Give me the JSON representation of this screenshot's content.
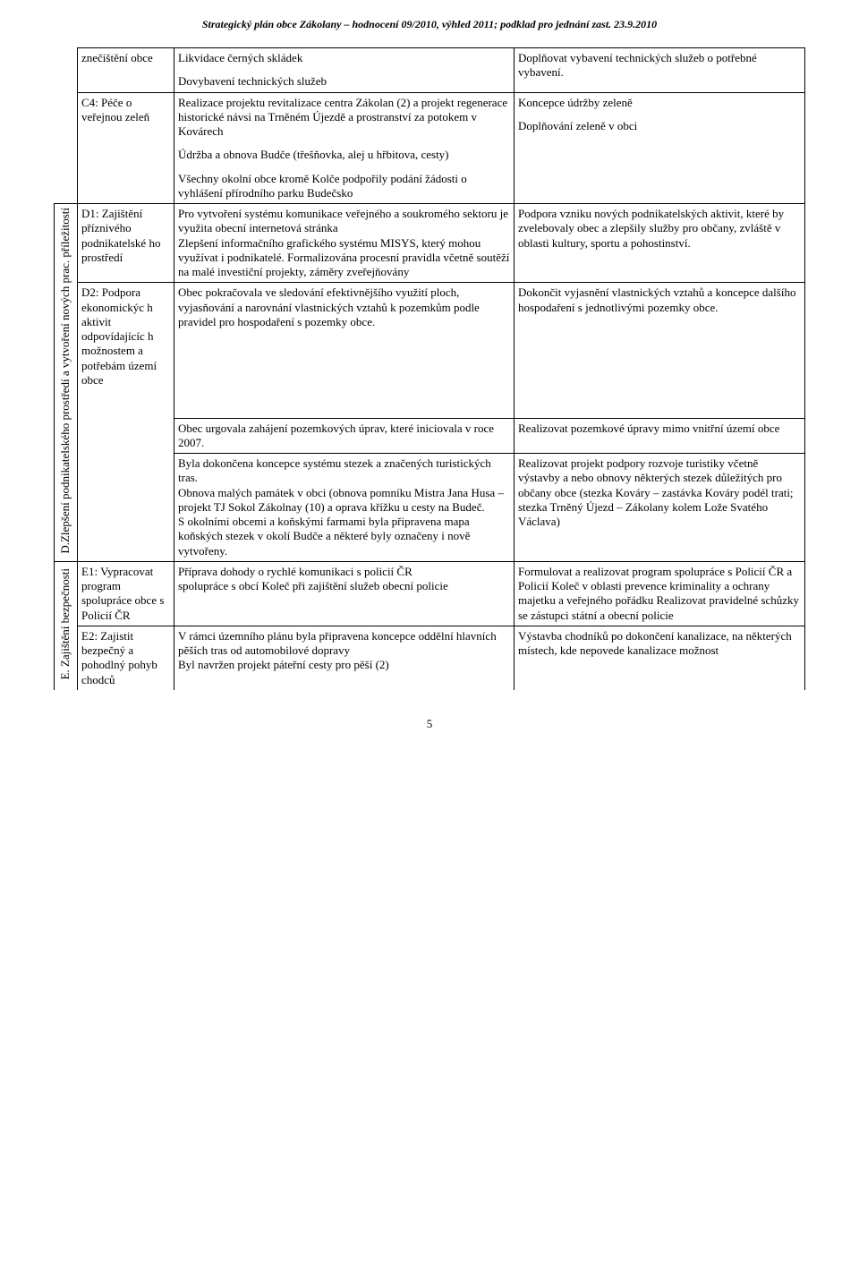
{
  "header": "Strategický plán obce Zákolany – hodnocení 09/2010, výhled 2011; podklad pro jednání zast. 23.9.2010",
  "page_number": "5",
  "sections": {
    "D": {
      "vlabel": "D.Zlepšení podnikatelského prostředí\na vytvoření nových prac. příležitostí"
    },
    "E": {
      "vlabel": "E.   Zajištění bezpečnosti"
    }
  },
  "rows": {
    "znecisteni": {
      "cat": "znečištění obce",
      "mid_p1": "Likvidace černých skládek",
      "mid_p2": "Dovybavení technických služeb",
      "right": "Doplňovat vybavení technických služeb o potřebné vybavení."
    },
    "c4": {
      "cat": "C4: Péče o veřejnou zeleň",
      "mid_p1": "Realizace projektu revitalizace centra Zákolan (2) a projekt regenerace historické návsi na Trněném Újezdě a prostranství za potokem v Kovárech",
      "mid_p2": "Údržba a obnova Budče (třešňovka, alej u hřbitova, cesty)",
      "mid_p3": "Všechny okolní obce kromě Kolče podpořily podání žádosti o vyhlášení přírodního parku Budečsko",
      "right_p1": "Koncepce údržby zeleně",
      "right_p2": "Doplňování zeleně v obci"
    },
    "d1": {
      "cat": "D1: Zajištění příznivého podnikatelské ho prostředí",
      "mid": "Pro vytvoření systému komunikace veřejného a soukromého sektoru je využita obecní internetová stránka\nZlepšení informačního grafického systému MISYS, který mohou využívat i podnikatelé. Formalizována procesní pravidla včetně soutěží na malé investiční projekty, záměry zveřejňovány",
      "right": "Podpora vzniku nových podnikatelských aktivit, které by zvelebovaly obec a zlepšily služby pro občany, zvláště v oblasti kultury, sportu a pohostinství."
    },
    "d2a": {
      "cat": "D2: Podpora ekonomickýc h aktivit odpovídajícíc h možnostem a potřebám území obce",
      "mid": "Obec pokračovala ve sledování efektivnějšího využití ploch, vyjasňování a narovnání vlastnických vztahů k pozemkům podle pravidel pro hospodaření s pozemky obce.",
      "right": "Dokončit vyjasnění vlastnických vztahů a koncepce dalšího hospodaření s jednotlivými pozemky obce."
    },
    "d2b": {
      "mid": "Obec urgovala zahájení pozemkových úprav, které iniciovala v roce 2007.",
      "right": "Realizovat pozemkové úpravy mimo vnitřní území obce"
    },
    "d2c": {
      "mid": "Byla dokončena koncepce systému stezek a značených turistických tras.\nObnova malých památek v obci (obnova pomníku Mistra Jana Husa – projekt TJ Sokol Zákolnay (10) a oprava křížku u cesty na Budeč.\nS okolními obcemi a koňskými farmami byla připravena mapa koňských stezek v okolí Budče a některé byly označeny i nově vytvořeny.",
      "right": "Realizovat projekt podpory rozvoje turistiky včetně výstavby a nebo obnovy některých stezek důležitých pro občany obce (stezka Kováry – zastávka Kováry podél trati; stezka Trněný Újezd – Zákolany kolem Lože Svatého Václava)"
    },
    "e1": {
      "cat": "E1: Vypracovat program spolupráce obce s Policií ČR",
      "mid": "Příprava dohody o rychlé komunikaci s policií ČR\nspolupráce s  obcí Koleč při zajištění služeb obecní policie",
      "right": "Formulovat a realizovat program spolupráce s Policií ČR a Policií Koleč v oblasti prevence kriminality a ochrany majetku a veřejného pořádku Realizovat pravidelné schůzky se zástupci státní a obecní policie"
    },
    "e2": {
      "cat": "E2: Zajistit bezpečný a pohodlný pohyb chodců",
      "mid": "V rámci územního plánu byla připravena koncepce oddělní hlavních pěších tras od automobilové dopravy\nByl navržen projekt páteřní cesty pro pěší (2)",
      "right": "Výstavba chodníků po dokončení kanalizace, na některých místech, kde nepovede kanalizace možnost"
    }
  }
}
